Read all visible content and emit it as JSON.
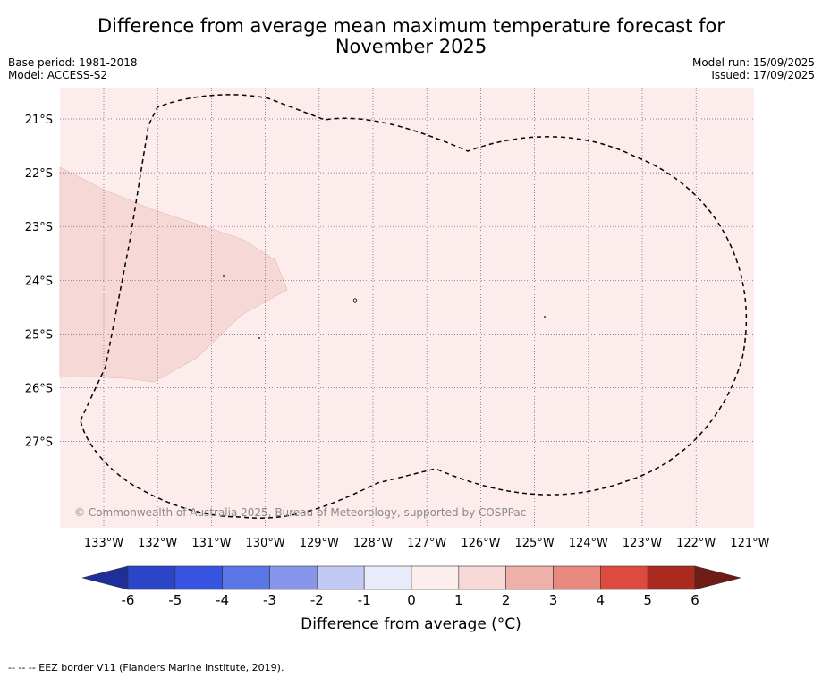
{
  "title_line1": "Difference from average mean maximum temperature forecast for",
  "title_line2": "November 2025",
  "meta_left": [
    "Base period: 1981-2018",
    "Model: ACCESS-S2"
  ],
  "meta_right": [
    "Model run: 15/09/2025",
    "Issued: 17/09/2025"
  ],
  "copyright": "© Commonwealth of Australia 2025, Bureau of Meteorology, supported by COSPPac",
  "lon_ticks": [
    "133°W",
    "132°W",
    "131°W",
    "130°W",
    "129°W",
    "128°W",
    "127°W",
    "126°W",
    "125°W",
    "124°W",
    "123°W",
    "122°W",
    "121°W"
  ],
  "lat_ticks": [
    "21°S",
    "22°S",
    "23°S",
    "24°S",
    "25°S",
    "26°S",
    "27°S"
  ],
  "colorbar": {
    "label": "Difference from average (°C)",
    "ticks": [
      "-6",
      "-5",
      "-4",
      "-3",
      "-2",
      "-1",
      "0",
      "1",
      "2",
      "3",
      "4",
      "5",
      "6"
    ],
    "colors": [
      "#1f2e98",
      "#2b45c8",
      "#3654e0",
      "#5a75e6",
      "#8796ea",
      "#c1c9f4",
      "#e8ebfa",
      "#fdeeee",
      "#f6d8d6",
      "#efb0aa",
      "#e8887f",
      "#dc4b3e",
      "#aa2a20",
      "#6f1b16"
    ]
  },
  "map": {
    "background_color": "#fcecec",
    "anomaly_region_color": "#f6d9d6"
  },
  "footnote": "--  --  -- EEZ border V11 (Flanders Marine Institute, 2019)."
}
